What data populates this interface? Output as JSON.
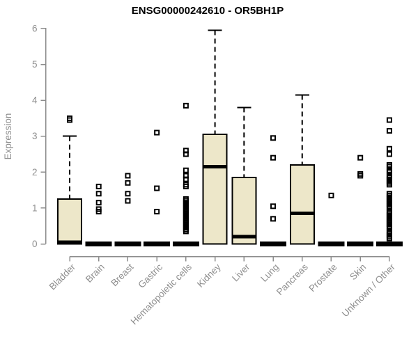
{
  "chart_data": {
    "type": "boxplot",
    "title": "ENSG00000242610 - OR5BH1P",
    "xlabel": "",
    "ylabel": "Expression",
    "ylim": [
      0,
      6
    ],
    "yticks": [
      0,
      1,
      2,
      3,
      4,
      5,
      6
    ],
    "grid": false,
    "legend": "none",
    "categories": [
      "Bladder",
      "Brain",
      "Breast",
      "Gastric",
      "Hematopoietic cells",
      "Kidney",
      "Liver",
      "Lung",
      "Pancreas",
      "Prostate",
      "Skin",
      "Unknown / Other"
    ],
    "boxes": [
      {
        "category": "Bladder",
        "q1": 0,
        "median": 0.05,
        "q3": 1.25,
        "whisker_low": 0,
        "whisker_high": 3.0,
        "outliers": [
          3.45,
          3.5
        ]
      },
      {
        "category": "Brain",
        "q1": 0,
        "median": 0,
        "q3": 0,
        "whisker_low": 0,
        "whisker_high": 0,
        "outliers": [
          1.6,
          1.4,
          1.15,
          0.97,
          0.9
        ]
      },
      {
        "category": "Breast",
        "q1": 0,
        "median": 0,
        "q3": 0,
        "whisker_low": 0,
        "whisker_high": 0,
        "outliers": [
          1.9,
          1.7,
          1.4,
          1.2
        ]
      },
      {
        "category": "Gastric",
        "q1": 0,
        "median": 0,
        "q3": 0,
        "whisker_low": 0,
        "whisker_high": 0,
        "outliers": [
          3.1,
          1.55,
          0.9
        ]
      },
      {
        "category": "Hematopoietic cells",
        "q1": 0,
        "median": 0,
        "q3": 0,
        "whisker_low": 0,
        "whisker_high": 0,
        "outliers": [
          3.85,
          2.6,
          2.5,
          2.05,
          1.9,
          1.8,
          1.65,
          1.6,
          1.25,
          1.2,
          1.15,
          1.1,
          1.05,
          1.0,
          0.95,
          0.9,
          0.85,
          0.8,
          0.75,
          0.7,
          0.65,
          0.6,
          0.55,
          0.5,
          0.45,
          0.4,
          0.35
        ]
      },
      {
        "category": "Kidney",
        "q1": 0,
        "median": 2.15,
        "q3": 3.05,
        "whisker_low": 0,
        "whisker_high": 5.95,
        "outliers": []
      },
      {
        "category": "Liver",
        "q1": 0,
        "median": 0.2,
        "q3": 1.85,
        "whisker_low": 0,
        "whisker_high": 3.8,
        "outliers": []
      },
      {
        "category": "Lung",
        "q1": 0,
        "median": 0,
        "q3": 0,
        "whisker_low": 0,
        "whisker_high": 0,
        "outliers": [
          2.95,
          2.4,
          1.05,
          0.7
        ]
      },
      {
        "category": "Pancreas",
        "q1": 0,
        "median": 0.85,
        "q3": 2.2,
        "whisker_low": 0,
        "whisker_high": 4.15,
        "outliers": []
      },
      {
        "category": "Prostate",
        "q1": 0,
        "median": 0,
        "q3": 0,
        "whisker_low": 0,
        "whisker_high": 0,
        "outliers": [
          1.35
        ]
      },
      {
        "category": "Skin",
        "q1": 0,
        "median": 0,
        "q3": 0,
        "whisker_low": 0,
        "whisker_high": 0,
        "outliers": [
          2.4,
          1.95,
          1.9
        ]
      },
      {
        "category": "Unknown / Other",
        "q1": 0,
        "median": 0,
        "q3": 0,
        "whisker_low": 0,
        "whisker_high": 0,
        "outliers": [
          3.45,
          3.15,
          2.65,
          2.5,
          2.2,
          2.15,
          2.05,
          2.0,
          1.9,
          1.85,
          1.8,
          1.75,
          1.7,
          1.65,
          1.4,
          1.35,
          1.3,
          1.25,
          1.2,
          1.15,
          1.1,
          1.05,
          1.0,
          0.9,
          0.85,
          0.8,
          0.75,
          0.7,
          0.65,
          0.6,
          0.55,
          0.5,
          0.45,
          0.35,
          0.3,
          0.25,
          0.2,
          0.15
        ]
      }
    ],
    "colors": {
      "box_fill": "#EDE7C9",
      "box_border": "#000000",
      "median": "#000000",
      "whisker": "#000000",
      "outlier": "#000000",
      "axis": "#8c8c8c",
      "tick_label": "#8e8e8e",
      "title": "#000000"
    }
  }
}
